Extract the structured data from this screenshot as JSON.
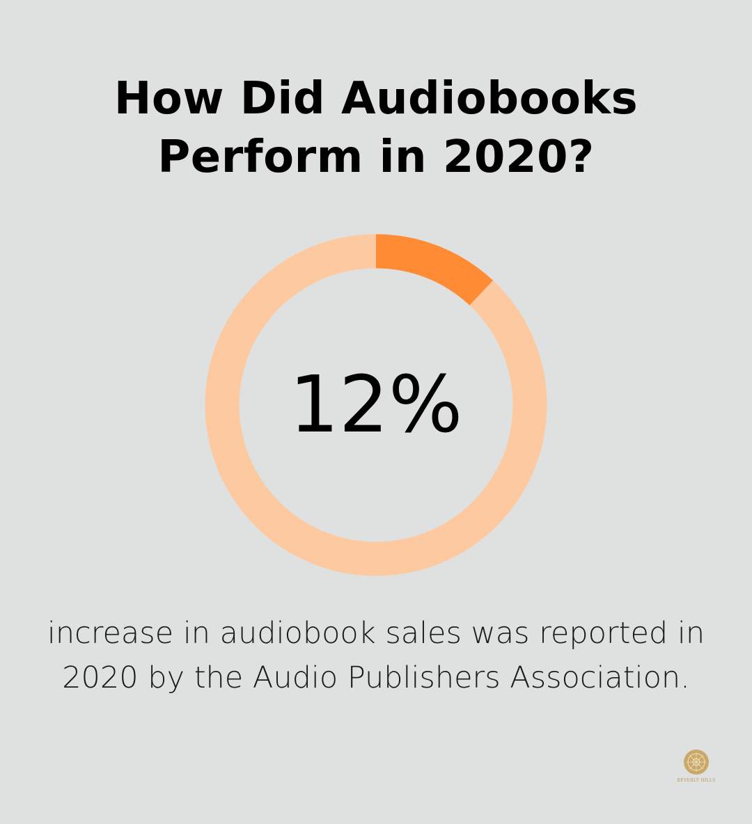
{
  "title_lines": [
    "How Did Audiobooks",
    "Perform in 2020?"
  ],
  "chart_data": {
    "type": "pie",
    "variant": "donut",
    "values": [
      12,
      88
    ],
    "center_label": "12%",
    "colors": {
      "highlight": "#ff8c35",
      "remainder": "#fdc9a0"
    }
  },
  "caption_lines": [
    "increase in audiobook sales was reported in",
    "2020 by the Audio Publishers Association."
  ],
  "logo": {
    "text": "BEVERLY HILLS",
    "color": "#c9a96a"
  },
  "background_color": "#dfe1e0"
}
